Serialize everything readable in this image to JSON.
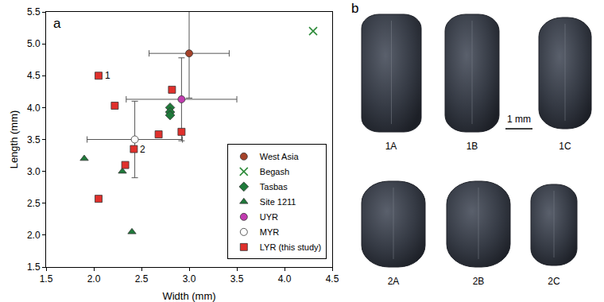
{
  "chart_data": {
    "type": "scatter",
    "panel_label": "a",
    "x_label": "Width (mm)",
    "y_label": "Length (mm)",
    "xlim": [
      1.5,
      4.5
    ],
    "xticks": [
      1.5,
      {
        "value": 2,
        "label": "2.0"
      },
      2.5,
      {
        "value": 3,
        "label": "3.0"
      },
      3.5,
      {
        "value": 4,
        "label": "4.0"
      },
      4.5
    ],
    "ylim": [
      1.5,
      5.5
    ],
    "yticks": [
      1.5,
      {
        "value": 2,
        "label": "2.0"
      },
      2.5,
      {
        "value": 3,
        "label": "3.0"
      },
      3.5,
      {
        "value": 4,
        "label": "4.0"
      },
      4.5,
      {
        "value": 5,
        "label": "5.0"
      },
      5.5
    ],
    "grid": false,
    "legend": "lower right",
    "series": [
      {
        "name": "West Asia",
        "color": "#a5422a",
        "marker": "circle",
        "x": [
          3.0
        ],
        "values": [
          4.85
        ],
        "x_err": [
          0.42
        ],
        "y_err": [
          0.7
        ]
      },
      {
        "name": "Begash",
        "color": "#2e8b3a",
        "marker": "x",
        "x": [
          4.3
        ],
        "values": [
          5.2
        ]
      },
      {
        "name": "Tasbas",
        "color": "#1f7a3a",
        "marker": "diamond",
        "x": [
          2.8,
          2.8,
          2.8
        ],
        "values": [
          4.0,
          3.93,
          3.88
        ]
      },
      {
        "name": "Site 1211",
        "color": "#1f7a3a",
        "marker": "triangle-up",
        "x": [
          1.9,
          2.3,
          2.4
        ],
        "values": [
          3.2,
          3.0,
          2.05
        ]
      },
      {
        "name": "UYR",
        "color": "#c23cb0",
        "marker": "circle",
        "x": [
          2.92
        ],
        "values": [
          4.13
        ],
        "x_err": [
          0.58
        ],
        "y_err": [
          0.65
        ]
      },
      {
        "name": "MYR",
        "color": "#ffffff",
        "marker": "circle",
        "x": [
          2.43
        ],
        "values": [
          3.5
        ],
        "x_err": [
          0.5
        ],
        "y_err": [
          0.6
        ]
      },
      {
        "name": "LYR (this study)",
        "color": "#e0302c",
        "marker": "square",
        "x": [
          2.05,
          2.22,
          2.82,
          2.68,
          2.92,
          2.42,
          2.33,
          2.05
        ],
        "values": [
          4.5,
          4.03,
          4.28,
          3.58,
          3.62,
          3.35,
          3.1,
          2.57
        ],
        "point_labels": [
          "1",
          null,
          null,
          null,
          null,
          "2",
          null,
          null
        ]
      }
    ]
  },
  "panel_b": {
    "label": "b",
    "images": [
      "1A",
      "1B",
      "1C",
      "2A",
      "2B",
      "2C"
    ],
    "scale_bar": "1 mm"
  }
}
